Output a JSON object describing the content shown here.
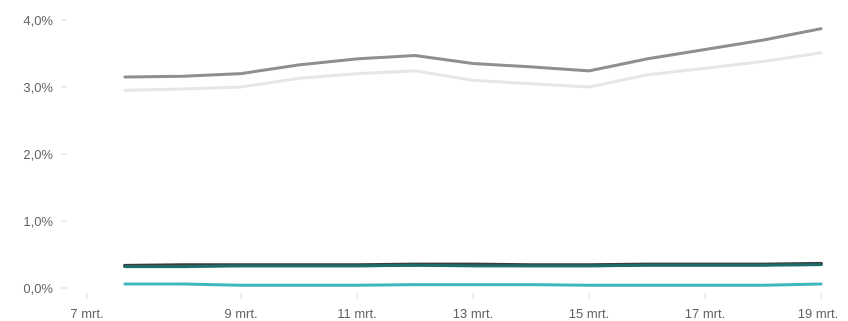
{
  "chart_data": {
    "type": "line",
    "title": "",
    "xlabel": "",
    "ylabel": "",
    "x": [
      "7 mrt.",
      "8 mrt.",
      "9 mrt.",
      "10 mrt.",
      "11 mrt.",
      "12 mrt.",
      "13 mrt.",
      "14 mrt.",
      "15 mrt.",
      "16 mrt.",
      "17 mrt.",
      "18 mrt.",
      "19 mrt."
    ],
    "x_tick_labels": [
      "7 mrt.",
      "9 mrt.",
      "11 mrt.",
      "13 mrt.",
      "15 mrt.",
      "17 mrt.",
      "19 mrt."
    ],
    "y_tick_labels": [
      "0,0%",
      "1,0%",
      "2,0%",
      "3,0%",
      "4,0%"
    ],
    "ylim": [
      0,
      4.0
    ],
    "grid": false,
    "legend": "none",
    "series": [
      {
        "color": "#8f8f8f",
        "values": [
          3.15,
          3.16,
          3.2,
          3.33,
          3.42,
          3.47,
          3.35,
          3.3,
          3.24,
          3.42,
          3.56,
          3.7,
          3.87
        ]
      },
      {
        "color": "#e6e6e6",
        "values": [
          2.95,
          2.97,
          3.0,
          3.13,
          3.2,
          3.24,
          3.1,
          3.05,
          3.0,
          3.18,
          3.28,
          3.38,
          3.51
        ]
      },
      {
        "color": "#3c3c3c",
        "values": [
          0.33,
          0.34,
          0.34,
          0.34,
          0.34,
          0.35,
          0.35,
          0.34,
          0.34,
          0.35,
          0.35,
          0.35,
          0.36
        ]
      },
      {
        "color": "#1e6c6a",
        "values": [
          0.32,
          0.32,
          0.33,
          0.33,
          0.33,
          0.34,
          0.33,
          0.33,
          0.33,
          0.34,
          0.34,
          0.34,
          0.35
        ]
      },
      {
        "color": "#3fb7bf",
        "values": [
          0.06,
          0.06,
          0.04,
          0.04,
          0.04,
          0.05,
          0.05,
          0.05,
          0.04,
          0.04,
          0.04,
          0.04,
          0.06
        ]
      }
    ]
  }
}
